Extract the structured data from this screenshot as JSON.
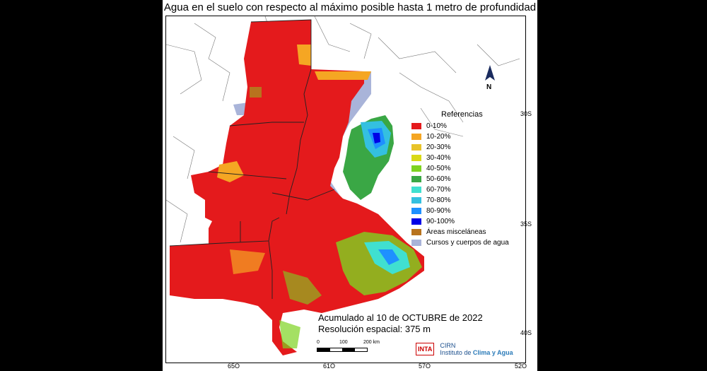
{
  "title": "Agua en el suelo con respecto al máximo posible hasta 1 metro de profundidad",
  "north_label": "N",
  "lat_labels": [
    "30S",
    "35S",
    "40S"
  ],
  "lon_labels": [
    "65O",
    "61O",
    "57O",
    "52O"
  ],
  "legend": {
    "title": "Referencias",
    "items": [
      {
        "label": "0-10%",
        "color": "#e41a1c"
      },
      {
        "label": "10-20%",
        "color": "#f5a623"
      },
      {
        "label": "20-30%",
        "color": "#e8c32a"
      },
      {
        "label": "30-40%",
        "color": "#d9d916"
      },
      {
        "label": "40-50%",
        "color": "#7ed321"
      },
      {
        "label": "50-60%",
        "color": "#3aa745"
      },
      {
        "label": "60-70%",
        "color": "#40e0d0"
      },
      {
        "label": "70-80%",
        "color": "#34c0e0"
      },
      {
        "label": "80-90%",
        "color": "#1e90ff"
      },
      {
        "label": "90-100%",
        "color": "#0000e6"
      },
      {
        "label": "Áreas misceláneas",
        "color": "#b8731e"
      },
      {
        "label": "Cursos y cuerpos de agua",
        "color": "#a9b4d9"
      }
    ]
  },
  "info": {
    "accumulated": "Acumulado al 10 de OCTUBRE de 2022",
    "resolution": "Resolución espacial: 375 m"
  },
  "scale_bar": {
    "labels": [
      "0",
      "100",
      "200 km"
    ]
  },
  "logos": {
    "inta": "INTA",
    "cirn_name": "CIRN",
    "institute_prefix": "Instituto de",
    "institute_name": "Clima y Agua"
  }
}
